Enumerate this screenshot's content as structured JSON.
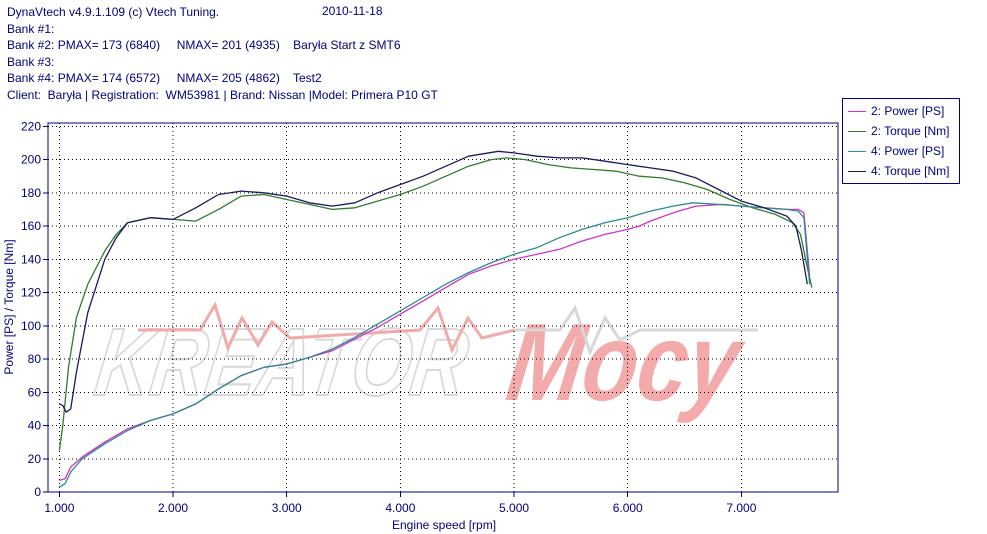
{
  "header": {
    "lines": [
      "DynaVtech v4.9.1.109 (c) Vtech Tuning.",
      "Bank #1:",
      "Bank #2: PMAX= 173 (6840)     NMAX= 201 (4935)    Baryła Start z SMT6",
      "Bank #3:",
      "Bank #4: PMAX= 174 (6572)     NMAX= 205 (4862)    Test2",
      "Client:  Baryła | Registration:  WM53981 | Brand: Nissan |Model: Primera P10 GT"
    ],
    "date": "2010-11-18"
  },
  "watermark": {
    "text": "KREATOR Mocy"
  },
  "colors": {
    "text": "#000080",
    "axis": "#000080",
    "grid": "#000000",
    "power2": "#cc33cc",
    "torque2": "#2e7d2e",
    "power4": "#2e8b8b",
    "torque4": "#1a1a5e",
    "watermark_red": "#f2aaaa",
    "watermark_gray": "#d8d8d8"
  },
  "chart_data": {
    "type": "line",
    "title": "",
    "xlabel": "Engine speed [rpm]",
    "ylabel": "Power [PS] / Torque [Nm]",
    "xlim": [
      900,
      7850
    ],
    "ylim": [
      0,
      222
    ],
    "x_ticks": [
      1000,
      2000,
      3000,
      4000,
      5000,
      6000,
      7000
    ],
    "x_tick_labels": [
      "1.000",
      "2.000",
      "3.000",
      "4.000",
      "5.000",
      "6.000",
      "7.000"
    ],
    "y_ticks": [
      0,
      20,
      40,
      60,
      80,
      100,
      120,
      140,
      160,
      180,
      200,
      220
    ],
    "y_tick_labels": [
      "0",
      "20",
      "40",
      "60",
      "80",
      "100",
      "120",
      "140",
      "160",
      "180",
      "200",
      "220"
    ],
    "grid": true,
    "legend_position": "top-right",
    "series": [
      {
        "name": "2: Power [PS]",
        "color_key": "power2",
        "x": [
          1000,
          1050,
          1100,
          1200,
          1400,
          1600,
          1800,
          2000,
          2200,
          2400,
          2600,
          2800,
          3000,
          3200,
          3400,
          3600,
          3800,
          4000,
          4200,
          4400,
          4600,
          4800,
          5000,
          5200,
          5400,
          5600,
          5800,
          6000,
          6100,
          6200,
          6400,
          6600,
          6840,
          7000,
          7200,
          7400,
          7500,
          7550,
          7600
        ],
        "y": [
          7,
          8,
          15,
          21,
          30,
          38,
          43,
          47,
          53,
          62,
          70,
          75,
          77,
          81,
          85,
          92,
          99,
          107,
          115,
          123,
          131,
          136,
          140,
          143,
          146,
          151,
          155,
          158,
          160,
          163,
          168,
          172,
          173,
          172,
          171,
          170,
          170,
          168,
          130
        ]
      },
      {
        "name": "2: Torque [Nm]",
        "color_key": "torque2",
        "x": [
          1000,
          1030,
          1080,
          1150,
          1250,
          1400,
          1500,
          1600,
          1800,
          2000,
          2200,
          2400,
          2600,
          2800,
          3000,
          3200,
          3400,
          3600,
          3800,
          4000,
          4200,
          4400,
          4600,
          4800,
          4935,
          5100,
          5300,
          5500,
          5700,
          5900,
          6100,
          6300,
          6500,
          6700,
          6900,
          7100,
          7300,
          7450,
          7520,
          7580,
          7620
        ],
        "y": [
          25,
          40,
          75,
          105,
          125,
          145,
          155,
          162,
          165,
          164,
          163,
          170,
          178,
          179,
          176,
          173,
          170,
          171,
          175,
          179,
          184,
          190,
          196,
          200,
          201,
          200,
          197,
          195,
          194,
          193,
          190,
          189,
          186,
          182,
          176,
          171,
          167,
          162,
          155,
          135,
          123
        ]
      },
      {
        "name": "4: Power [PS]",
        "color_key": "power4",
        "x": [
          1000,
          1050,
          1100,
          1200,
          1400,
          1600,
          1800,
          2000,
          2200,
          2400,
          2600,
          2800,
          3000,
          3200,
          3400,
          3600,
          3800,
          4000,
          4200,
          4400,
          4600,
          4800,
          5000,
          5200,
          5400,
          5600,
          5800,
          6000,
          6200,
          6400,
          6572,
          6800,
          7000,
          7200,
          7400,
          7500,
          7550,
          7600
        ],
        "y": [
          3,
          5,
          12,
          20,
          29,
          37,
          43,
          47,
          53,
          62,
          70,
          75,
          77,
          81,
          86,
          93,
          101,
          109,
          117,
          125,
          132,
          138,
          143,
          147,
          153,
          158,
          162,
          165,
          169,
          172,
          174,
          173,
          172,
          171,
          170,
          169,
          165,
          125
        ]
      },
      {
        "name": "4: Torque [Nm]",
        "color_key": "torque4",
        "x": [
          1000,
          1030,
          1060,
          1100,
          1150,
          1250,
          1400,
          1500,
          1600,
          1800,
          2000,
          2200,
          2400,
          2600,
          2800,
          3000,
          3200,
          3400,
          3600,
          3800,
          4000,
          4200,
          4400,
          4600,
          4862,
          5000,
          5200,
          5400,
          5600,
          5800,
          6000,
          6200,
          6400,
          6600,
          6800,
          7000,
          7200,
          7400,
          7480,
          7530,
          7580
        ],
        "y": [
          53,
          52,
          48,
          50,
          72,
          108,
          140,
          153,
          162,
          165,
          164,
          171,
          179,
          181,
          180,
          178,
          174,
          172,
          174,
          180,
          185,
          190,
          196,
          202,
          205,
          204,
          202,
          201,
          201,
          199,
          197,
          195,
          193,
          189,
          182,
          175,
          171,
          166,
          160,
          145,
          125
        ]
      }
    ]
  }
}
